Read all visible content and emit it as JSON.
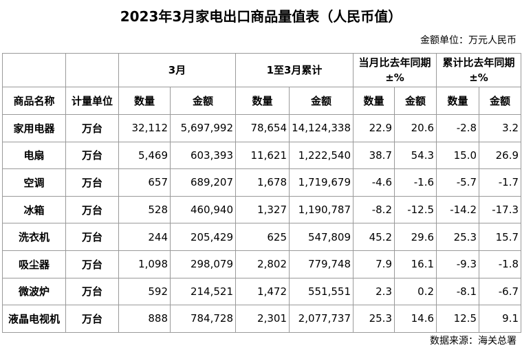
{
  "header": {
    "title": "2023年3月家电出口商品量值表（人民币值）",
    "unit": "金额单位：万元人民币"
  },
  "table": {
    "group_headers": [
      "3月",
      "1至3月累计",
      "当月比去年同期±%",
      "累计比去年同期±%"
    ],
    "columns": [
      "商品名称",
      "计量单位",
      "数量",
      "金额",
      "数量",
      "金额",
      "数量",
      "金额",
      "数量",
      "金额"
    ],
    "rows": [
      [
        "家用电器",
        "万台",
        "32,112",
        "5,697,992",
        "78,654",
        "14,124,338",
        "22.9",
        "20.6",
        "-2.8",
        "3.2"
      ],
      [
        "电扇",
        "万台",
        "5,469",
        "603,393",
        "11,621",
        "1,222,540",
        "38.7",
        "54.3",
        "15.0",
        "26.9"
      ],
      [
        "空调",
        "万台",
        "657",
        "689,207",
        "1,678",
        "1,719,679",
        "-4.6",
        "-1.6",
        "-5.7",
        "-1.7"
      ],
      [
        "冰箱",
        "万台",
        "528",
        "460,940",
        "1,327",
        "1,190,787",
        "-8.2",
        "-12.5",
        "-14.2",
        "-17.3"
      ],
      [
        "洗衣机",
        "万台",
        "244",
        "205,429",
        "625",
        "547,809",
        "45.2",
        "29.6",
        "25.3",
        "15.7"
      ],
      [
        "吸尘器",
        "万台",
        "1,098",
        "298,079",
        "2,802",
        "779,748",
        "7.9",
        "16.1",
        "-9.3",
        "-1.8"
      ],
      [
        "微波炉",
        "万台",
        "592",
        "214,521",
        "1,472",
        "551,551",
        "2.3",
        "0.2",
        "-8.1",
        "-6.7"
      ],
      [
        "液晶电视机",
        "万台",
        "888",
        "784,728",
        "2,301",
        "2,077,737",
        "25.3",
        "14.6",
        "12.5",
        "9.1"
      ]
    ]
  },
  "footer": {
    "source": "数据来源：海关总署"
  }
}
